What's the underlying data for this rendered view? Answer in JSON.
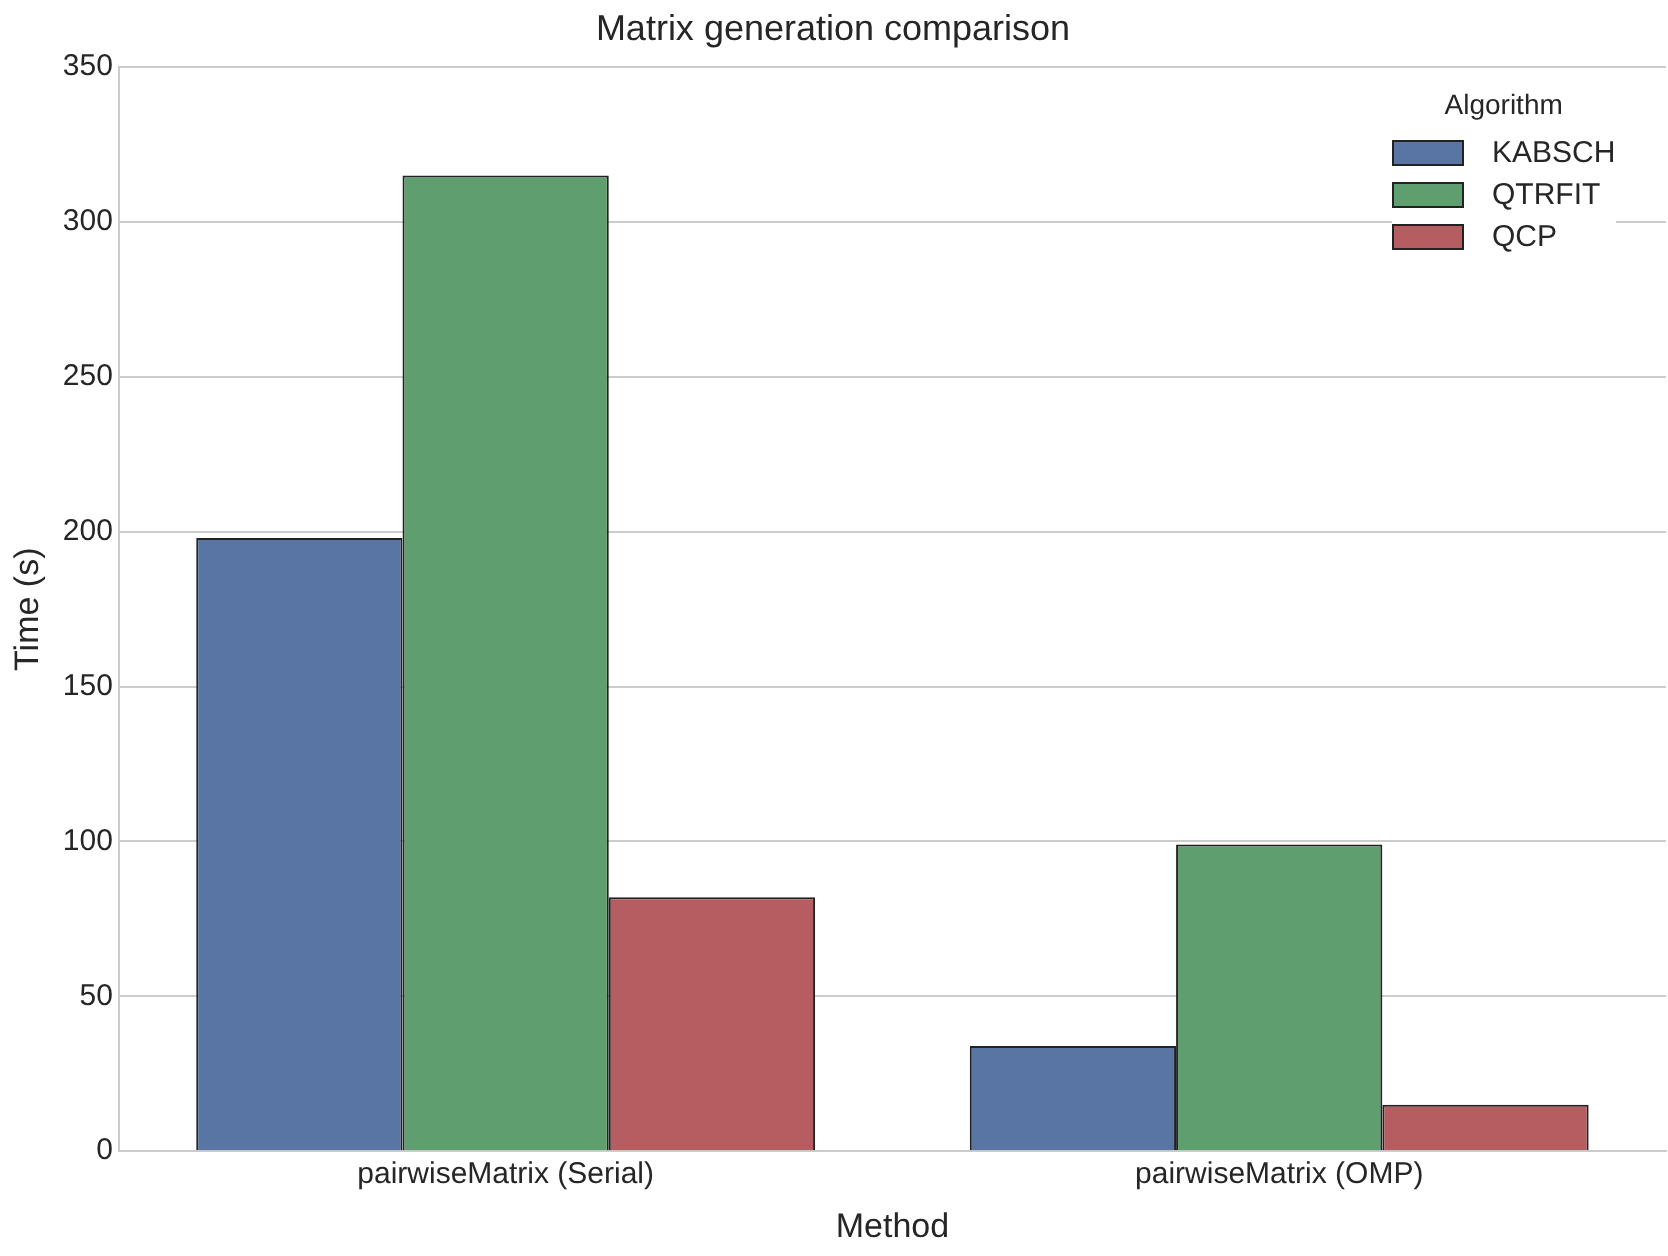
{
  "chart_data": {
    "type": "bar",
    "title": "Matrix generation comparison",
    "xlabel": "Method",
    "ylabel": "Time (s)",
    "legend_title": "Algorithm",
    "categories": [
      "pairwiseMatrix (Serial)",
      "pairwiseMatrix (OMP)"
    ],
    "series": [
      {
        "name": "KABSCH",
        "color": "#5975a4",
        "values": [
          198,
          34
        ]
      },
      {
        "name": "QTRFIT",
        "color": "#5f9e6e",
        "values": [
          315,
          99
        ]
      },
      {
        "name": "QCP",
        "color": "#b55d60",
        "values": [
          82,
          15
        ]
      }
    ],
    "ylim": [
      0,
      350
    ],
    "yticks": [
      0,
      50,
      100,
      150,
      200,
      250,
      300,
      350
    ],
    "grid": "y",
    "legend": "top right"
  }
}
